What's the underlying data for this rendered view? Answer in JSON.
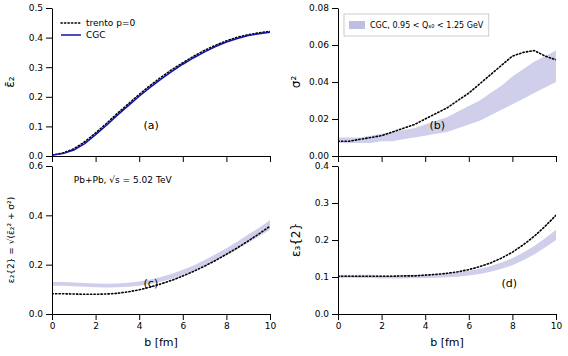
{
  "chart_data": [
    {
      "type": "line",
      "x": [
        0,
        0.5,
        1.0,
        1.5,
        2.0,
        2.5,
        3.0,
        3.5,
        4.0,
        4.5,
        5.0,
        5.5,
        6.0,
        6.5,
        7.0,
        7.5,
        8.0,
        8.5,
        9.0,
        9.5,
        10.0
      ],
      "y_label": "ε̄₂",
      "annotations": [
        "(a)"
      ],
      "series": [
        {
          "name": "trento p=0",
          "color": "black",
          "line_style": "dotted",
          "values": [
            0.003,
            0.01,
            0.024,
            0.048,
            0.078,
            0.11,
            0.144,
            0.176,
            0.208,
            0.238,
            0.266,
            0.292,
            0.315,
            0.337,
            0.357,
            0.374,
            0.389,
            0.401,
            0.41,
            0.416,
            0.421
          ]
        },
        {
          "name": "CGC",
          "color": "#1111aa",
          "line_style": "solid",
          "values": [
            0.003,
            0.008,
            0.02,
            0.042,
            0.072,
            0.104,
            0.138,
            0.17,
            0.202,
            0.232,
            0.26,
            0.286,
            0.31,
            0.332,
            0.352,
            0.37,
            0.385,
            0.397,
            0.407,
            0.413,
            0.418
          ]
        }
      ],
      "xlim": [
        0,
        10
      ],
      "xticks": [
        0,
        2,
        4,
        6,
        8,
        10
      ],
      "ylim": [
        0.0,
        0.5
      ],
      "yticks": [
        {
          "value": 0.0,
          "label": "0.0"
        },
        0.1,
        0.2,
        0.3,
        0.4,
        0.5
      ],
      "tick_labels": "y",
      "grid": false,
      "legend": "upper-left"
    },
    {
      "type": "line",
      "x": [
        0,
        0.5,
        1.0,
        1.5,
        2.0,
        2.5,
        3.0,
        3.5,
        4.0,
        4.5,
        5.0,
        5.5,
        6.0,
        6.5,
        7.0,
        7.5,
        8.0,
        8.5,
        9.0,
        9.5,
        10.0
      ],
      "y_label": "σ²",
      "annotations": [
        "(b)"
      ],
      "series": [
        {
          "name": "CGC, 0.95 < Qₛ₀ < 1.25 GeV",
          "type": "area",
          "color": "#8888cc",
          "low": [
            0.007,
            0.007,
            0.007,
            0.007,
            0.008,
            0.008,
            0.009,
            0.01,
            0.011,
            0.012,
            0.013,
            0.015,
            0.017,
            0.019,
            0.022,
            0.025,
            0.028,
            0.031,
            0.034,
            0.037,
            0.04
          ],
          "high": [
            0.01,
            0.01,
            0.01,
            0.011,
            0.012,
            0.013,
            0.014,
            0.015,
            0.017,
            0.019,
            0.021,
            0.024,
            0.027,
            0.03,
            0.034,
            0.038,
            0.043,
            0.047,
            0.051,
            0.054,
            0.057
          ]
        },
        {
          "type": "line",
          "color": "black",
          "line_style": "dotted",
          "values": [
            0.008,
            0.008,
            0.009,
            0.01,
            0.011,
            0.013,
            0.015,
            0.017,
            0.02,
            0.023,
            0.026,
            0.03,
            0.034,
            0.039,
            0.044,
            0.049,
            0.054,
            0.056,
            0.057,
            0.054,
            0.052
          ]
        }
      ],
      "xlim": [
        0,
        10
      ],
      "xticks": [
        0,
        2,
        4,
        6,
        8,
        10
      ],
      "ylim": [
        0.0,
        0.08
      ],
      "yticks": [
        {
          "value": 0.0,
          "label": "0.00"
        },
        {
          "value": 0.02,
          "label": "0.02"
        },
        {
          "value": 0.04,
          "label": "0.04"
        },
        {
          "value": 0.06,
          "label": "0.06"
        },
        {
          "value": 0.08,
          "label": "0.08"
        }
      ],
      "tick_labels": "y",
      "grid": false,
      "legend": "upper-left"
    },
    {
      "type": "line",
      "x": [
        0,
        0.5,
        1.0,
        1.5,
        2.0,
        2.5,
        3.0,
        3.5,
        4.0,
        4.5,
        5.0,
        5.5,
        6.0,
        6.5,
        7.0,
        7.5,
        8.0,
        8.5,
        9.0,
        9.5,
        10.0
      ],
      "x_label": "b [fm]",
      "y_label": "ε₂{2} = √(ε̄₂² + σ²)",
      "annotations": [
        "(c)",
        "Pb+Pb, √s = 5.02 TeV"
      ],
      "series": [
        {
          "type": "area",
          "color": "#8888cc",
          "low": [
            0.115,
            0.115,
            0.113,
            0.11,
            0.108,
            0.107,
            0.108,
            0.11,
            0.115,
            0.122,
            0.131,
            0.143,
            0.157,
            0.174,
            0.194,
            0.215,
            0.238,
            0.263,
            0.289,
            0.315,
            0.342
          ],
          "high": [
            0.13,
            0.13,
            0.128,
            0.126,
            0.124,
            0.123,
            0.124,
            0.127,
            0.132,
            0.14,
            0.15,
            0.163,
            0.179,
            0.197,
            0.219,
            0.242,
            0.267,
            0.294,
            0.322,
            0.35,
            0.38
          ]
        },
        {
          "type": "line",
          "color": "black",
          "line_style": "dotted",
          "values": [
            0.082,
            0.082,
            0.081,
            0.08,
            0.08,
            0.081,
            0.084,
            0.09,
            0.098,
            0.109,
            0.122,
            0.137,
            0.154,
            0.173,
            0.194,
            0.217,
            0.242,
            0.268,
            0.296,
            0.325,
            0.356
          ]
        }
      ],
      "xlim": [
        0,
        10
      ],
      "xticks": [
        0,
        2,
        4,
        6,
        8,
        10
      ],
      "ylim": [
        0.0,
        0.6
      ],
      "yticks": [
        {
          "value": 0.0,
          "label": "0.0"
        },
        0.2,
        0.4,
        0.6
      ],
      "grid": false
    },
    {
      "type": "line",
      "x": [
        0,
        0.5,
        1.0,
        1.5,
        2.0,
        2.5,
        3.0,
        3.5,
        4.0,
        4.5,
        5.0,
        5.5,
        6.0,
        6.5,
        7.0,
        7.5,
        8.0,
        8.5,
        9.0,
        9.5,
        10.0
      ],
      "x_label": "b [fm]",
      "y_label": "ε₃{2}",
      "annotations": [
        "(d)"
      ],
      "series": [
        {
          "type": "area",
          "color": "#8888cc",
          "low": [
            0.098,
            0.098,
            0.097,
            0.097,
            0.096,
            0.096,
            0.096,
            0.097,
            0.097,
            0.098,
            0.099,
            0.101,
            0.104,
            0.108,
            0.114,
            0.122,
            0.132,
            0.145,
            0.161,
            0.18,
            0.2
          ],
          "high": [
            0.106,
            0.106,
            0.106,
            0.106,
            0.105,
            0.105,
            0.105,
            0.106,
            0.107,
            0.108,
            0.11,
            0.113,
            0.117,
            0.122,
            0.129,
            0.139,
            0.151,
            0.166,
            0.184,
            0.205,
            0.228
          ]
        },
        {
          "type": "line",
          "color": "black",
          "line_style": "dotted",
          "values": [
            0.102,
            0.102,
            0.102,
            0.102,
            0.102,
            0.102,
            0.103,
            0.103,
            0.105,
            0.107,
            0.11,
            0.114,
            0.12,
            0.128,
            0.138,
            0.151,
            0.167,
            0.187,
            0.21,
            0.237,
            0.267
          ]
        }
      ],
      "xlim": [
        0,
        10
      ],
      "xticks": [
        0,
        2,
        4,
        6,
        8,
        10
      ],
      "ylim": [
        0.0,
        0.4
      ],
      "yticks": [
        {
          "value": 0.0,
          "label": "0.0"
        },
        0.1,
        0.2,
        0.3,
        0.4
      ],
      "grid": false
    }
  ]
}
